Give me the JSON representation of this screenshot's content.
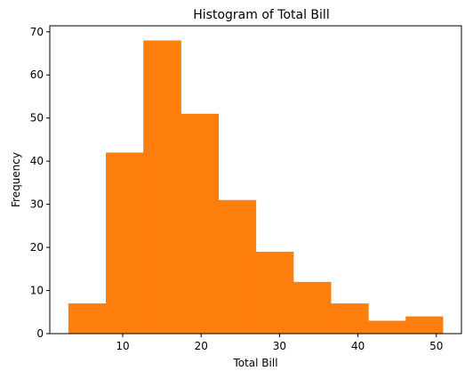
{
  "chart_data": {
    "type": "bar",
    "title": "Histogram of Total Bill",
    "xlabel": "Total Bill",
    "ylabel": "Frequency",
    "bin_edges": [
      3.07,
      7.85,
      12.63,
      17.41,
      22.19,
      26.97,
      31.75,
      36.53,
      41.31,
      46.09,
      50.81
    ],
    "values": [
      7,
      42,
      68,
      51,
      31,
      19,
      12,
      7,
      3,
      4
    ],
    "xlim": [
      0.7,
      53.2
    ],
    "ylim": [
      0,
      71.4
    ],
    "xticks": [
      10,
      20,
      30,
      40,
      50
    ],
    "yticks": [
      0,
      10,
      20,
      30,
      40,
      50,
      60,
      70
    ],
    "bar_color": "#ff7f0e",
    "grid": false
  }
}
